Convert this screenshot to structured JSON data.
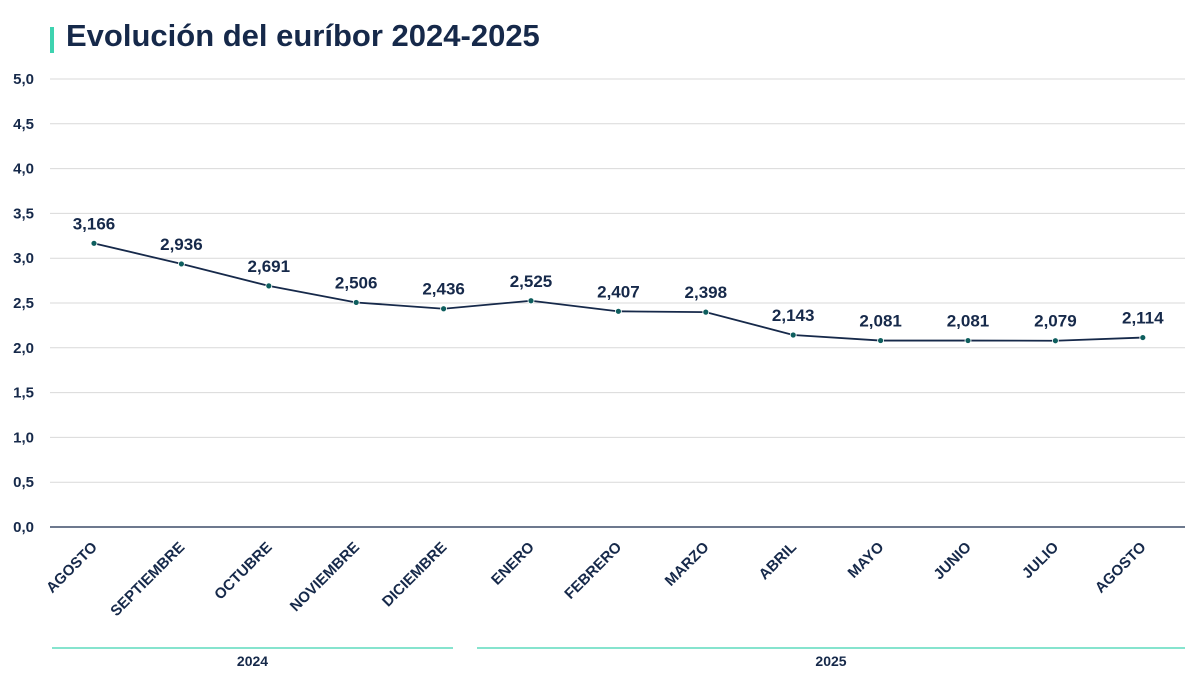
{
  "title": "Evolución del euríbor 2024-2025",
  "colors": {
    "accent": "#3ed3b0",
    "text": "#16294a",
    "line": "#16294a",
    "marker": "#0e5e5e",
    "grid": "#d9d9d9"
  },
  "chart_data": {
    "type": "line",
    "title": "Evolución del euríbor 2024-2025",
    "xlabel": "",
    "ylabel": "",
    "ylim": [
      0,
      5
    ],
    "yticks": [
      "0,0",
      "0,5",
      "1,0",
      "1,5",
      "2,0",
      "2,5",
      "3,0",
      "3,5",
      "4,0",
      "4,5",
      "5,0"
    ],
    "grid": true,
    "categories": [
      "AGOSTO",
      "SEPTIEMBRE",
      "OCTUBRE",
      "NOVIEMBRE",
      "DICIEMBRE",
      "ENERO",
      "FEBRERO",
      "MARZO",
      "ABRIL",
      "MAYO",
      "JUNIO",
      "JULIO",
      "AGOSTO"
    ],
    "values": [
      3.166,
      2.936,
      2.691,
      2.506,
      2.436,
      2.525,
      2.407,
      2.398,
      2.143,
      2.081,
      2.081,
      2.079,
      2.114
    ],
    "value_labels": [
      "3,166",
      "2,936",
      "2,691",
      "2,506",
      "2,436",
      "2,525",
      "2,407",
      "2,398",
      "2,143",
      "2,081",
      "2,081",
      "2,079",
      "2,114"
    ],
    "year_groups": [
      {
        "label": "2024",
        "start": 0,
        "end": 4
      },
      {
        "label": "2025",
        "start": 5,
        "end": 12
      }
    ]
  }
}
